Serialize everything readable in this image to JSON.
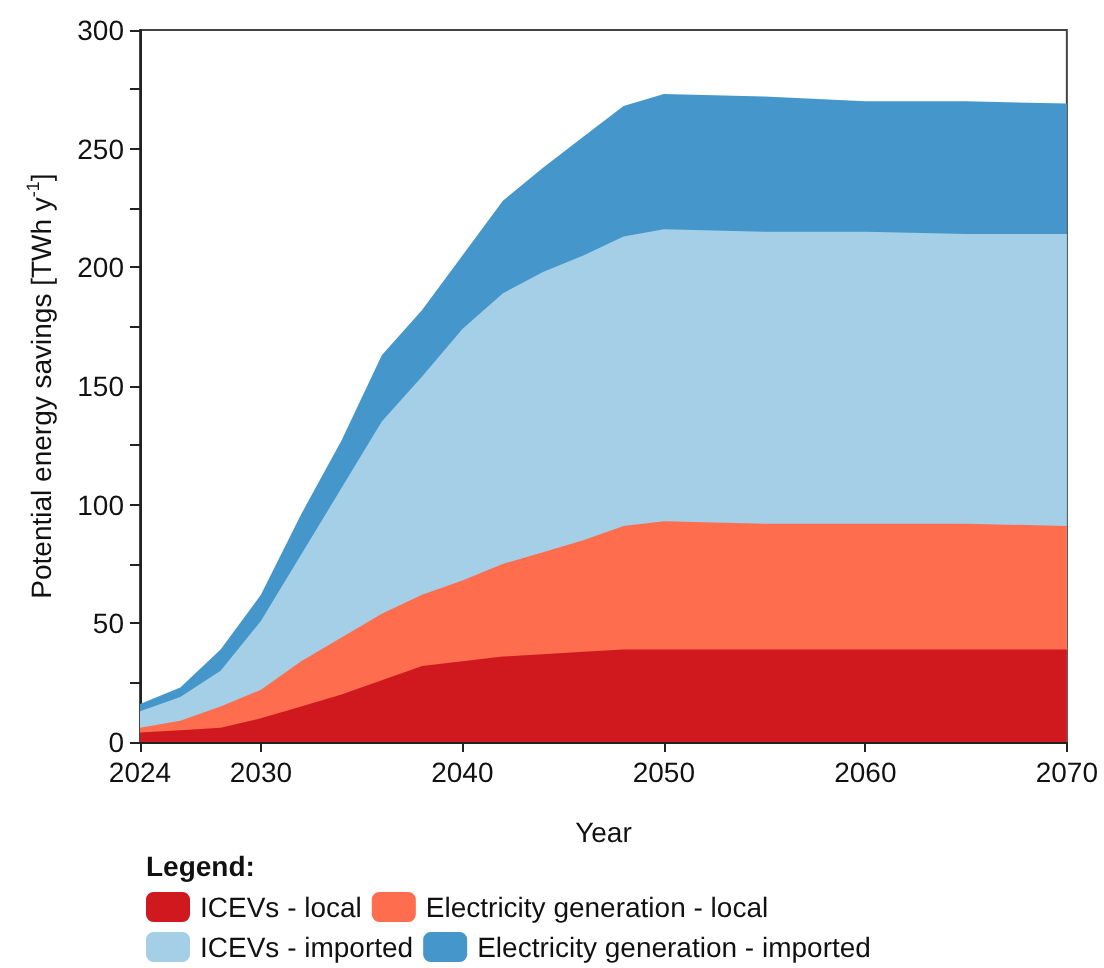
{
  "chart_data": {
    "type": "area",
    "stacked": true,
    "xlabel": "Year",
    "ylabel": "Potential energy savings [TWh y$^{-1}$]",
    "legend_title": "Legend:",
    "legend": "bottom",
    "grid": false,
    "x": [
      2024,
      2026,
      2028,
      2030,
      2032,
      2034,
      2036,
      2038,
      2040,
      2042,
      2044,
      2046,
      2048,
      2050,
      2055,
      2060,
      2065,
      2070
    ],
    "xlim": [
      2024,
      2070
    ],
    "xticks": [
      2024,
      2030,
      2040,
      2050,
      2060,
      2070
    ],
    "ylim": [
      0,
      300
    ],
    "yticks": [
      0,
      {
        "value": 25,
        "label": null
      },
      50,
      {
        "value": 75,
        "label": null
      },
      100,
      {
        "value": 125,
        "label": null
      },
      150,
      {
        "value": 175,
        "label": null
      },
      200,
      {
        "value": 225,
        "label": null
      },
      250,
      {
        "value": 275,
        "label": null
      },
      300
    ],
    "series": [
      {
        "name": "ICEVs - local",
        "color": "#d0191f",
        "values": [
          4,
          5,
          6,
          10,
          15,
          20,
          26,
          32,
          34,
          36,
          37,
          38,
          39,
          39,
          39,
          39,
          39,
          39
        ]
      },
      {
        "name": "Electricity generation - local",
        "color": "#fd6d4e",
        "values": [
          2,
          4,
          9,
          12,
          19,
          24,
          28,
          30,
          34,
          39,
          43,
          47,
          52,
          54,
          53,
          53,
          53,
          52
        ]
      },
      {
        "name": "ICEVs - imported",
        "color": "#a4cfe7",
        "values": [
          7,
          10,
          15,
          29,
          45,
          63,
          81,
          92,
          106,
          114,
          118,
          120,
          122,
          123,
          123,
          123,
          122,
          123
        ]
      },
      {
        "name": "Electricity generation - imported",
        "color": "#4597cb",
        "values": [
          3,
          4,
          9,
          11,
          17,
          20,
          28,
          28,
          31,
          39,
          44,
          50,
          55,
          57,
          57,
          55,
          56,
          55
        ]
      }
    ]
  }
}
